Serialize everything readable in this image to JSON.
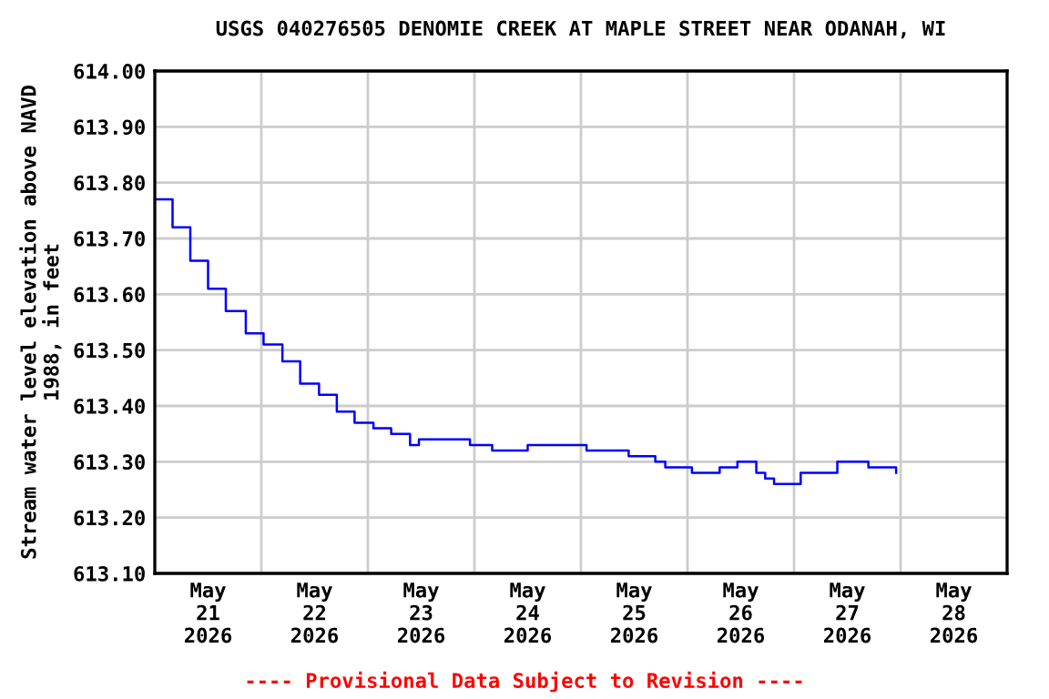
{
  "chart_data": {
    "type": "step",
    "title": "USGS 040276505 DENOMIE CREEK AT MAPLE STREET NEAR ODANAH, WI",
    "ylabel": "Stream water level elevation above NAVD\n1988, in feet",
    "annotations": [
      "---- Provisional Data Subject to Revision ----"
    ],
    "x": [
      "2026-05-21T00:00",
      "2026-05-21T04:00",
      "2026-05-21T08:00",
      "2026-05-21T12:00",
      "2026-05-21T16:00",
      "2026-05-21T20:30",
      "2026-05-22T00:30",
      "2026-05-22T04:45",
      "2026-05-22T08:45",
      "2026-05-22T13:00",
      "2026-05-22T17:00",
      "2026-05-22T21:00",
      "2026-05-23T01:15",
      "2026-05-23T05:15",
      "2026-05-23T09:30",
      "2026-05-23T11:30",
      "2026-05-23T21:45",
      "2026-05-23T23:00",
      "2026-05-24T04:00",
      "2026-05-24T12:00",
      "2026-05-25T00:30",
      "2026-05-25T01:15",
      "2026-05-25T10:45",
      "2026-05-25T16:45",
      "2026-05-25T19:00",
      "2026-05-26T01:00",
      "2026-05-26T07:15",
      "2026-05-26T11:15",
      "2026-05-26T15:30",
      "2026-05-26T17:30",
      "2026-05-26T19:30",
      "2026-05-27T01:30",
      "2026-05-27T07:45",
      "2026-05-27T09:45",
      "2026-05-27T16:00",
      "2026-05-27T16:45",
      "2026-05-27T22:15",
      "2026-05-27T23:00"
    ],
    "series": [
      {
        "color": "#0000ff",
        "values": [
          613.77,
          613.72,
          613.66,
          613.61,
          613.57,
          613.53,
          613.51,
          613.48,
          613.44,
          613.42,
          613.39,
          613.37,
          613.36,
          613.35,
          613.33,
          613.34,
          613.34,
          613.33,
          613.32,
          613.33,
          613.33,
          613.32,
          613.31,
          613.3,
          613.29,
          613.28,
          613.29,
          613.3,
          613.28,
          613.27,
          613.26,
          613.28,
          613.28,
          613.3,
          613.3,
          613.29,
          613.29,
          613.28
        ]
      }
    ],
    "xlim": [
      "2026-05-21T00:00",
      "2026-05-29T00:00"
    ],
    "xticks": [
      {
        "value": "2026-05-21T12:00",
        "label": "May\n21\n2026"
      },
      {
        "value": "2026-05-22T12:00",
        "label": "May\n22\n2026"
      },
      {
        "value": "2026-05-23T12:00",
        "label": "May\n23\n2026"
      },
      {
        "value": "2026-05-24T12:00",
        "label": "May\n24\n2026"
      },
      {
        "value": "2026-05-25T12:00",
        "label": "May\n25\n2026"
      },
      {
        "value": "2026-05-26T12:00",
        "label": "May\n26\n2026"
      },
      {
        "value": "2026-05-27T12:00",
        "label": "May\n27\n2026"
      },
      {
        "value": "2026-05-28T12:00",
        "label": "May\n28\n2026"
      },
      {
        "value": "2026-05-22T00:00",
        "label": null
      },
      {
        "value": "2026-05-23T00:00",
        "label": null
      },
      {
        "value": "2026-05-24T00:00",
        "label": null
      },
      {
        "value": "2026-05-25T00:00",
        "label": null
      },
      {
        "value": "2026-05-26T00:00",
        "label": null
      },
      {
        "value": "2026-05-27T00:00",
        "label": null
      },
      {
        "value": "2026-05-28T00:00",
        "label": null
      }
    ],
    "ylim": [
      613.1,
      614.0
    ],
    "yticks": [
      {
        "value": 613.1,
        "label": "613.10"
      },
      {
        "value": 613.2,
        "label": "613.20"
      },
      {
        "value": 613.3,
        "label": "613.30"
      },
      {
        "value": 613.4,
        "label": "613.40"
      },
      {
        "value": 613.5,
        "label": "613.50"
      },
      {
        "value": 613.6,
        "label": "613.60"
      },
      {
        "value": 613.7,
        "label": "613.70"
      },
      {
        "value": 613.8,
        "label": "613.80"
      },
      {
        "value": 613.9,
        "label": "613.90"
      },
      {
        "value": 614.0,
        "label": "614.00"
      }
    ],
    "grid": true
  }
}
